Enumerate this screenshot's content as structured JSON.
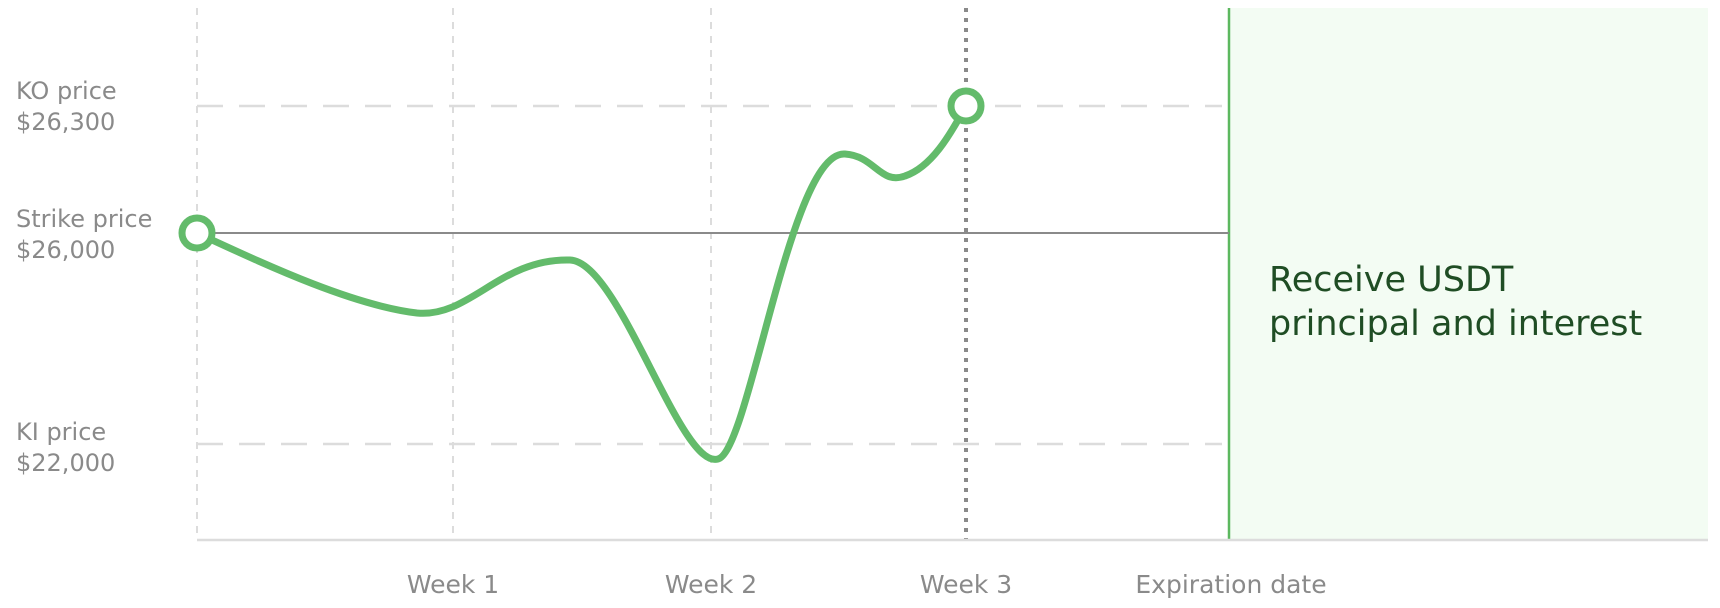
{
  "levels": [
    {
      "label": "KO price",
      "price": "$26,300"
    },
    {
      "label": "Strike price",
      "price": "$26,000"
    },
    {
      "label": "KI price",
      "price": "$22,000"
    }
  ],
  "x_labels": [
    "Week 1",
    "Week 2",
    "Week 3",
    "Expiration date"
  ],
  "panel_text": [
    "Receive USDT",
    "principal and interest"
  ]
}
